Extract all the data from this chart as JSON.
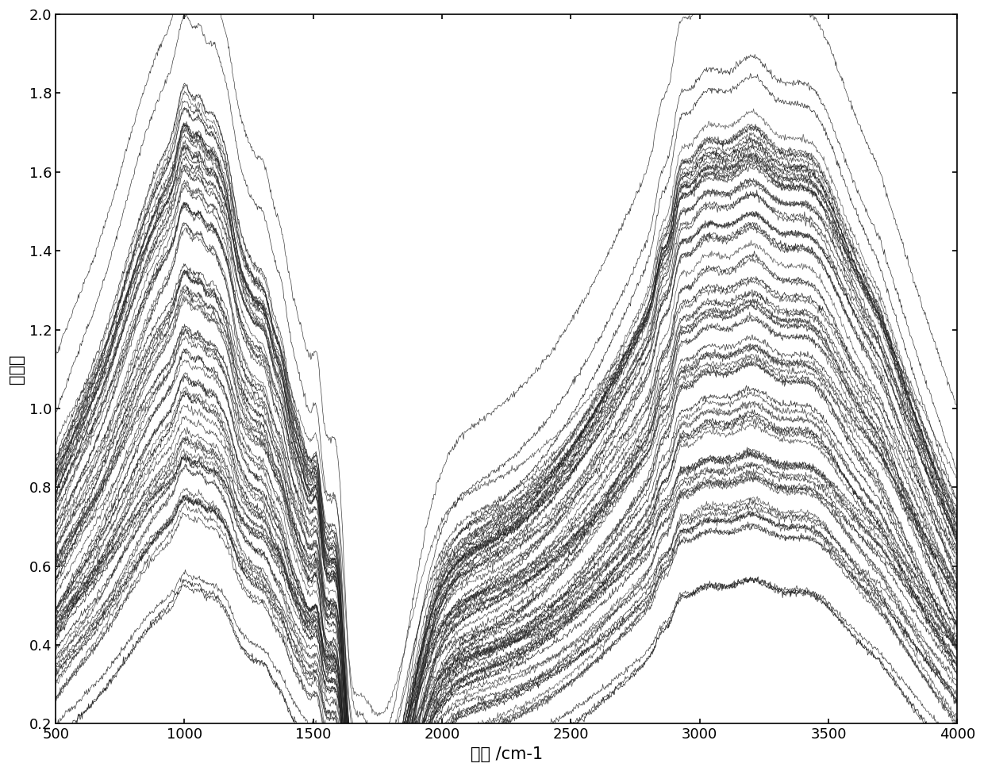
{
  "xlim": [
    500,
    4000
  ],
  "ylim": [
    0.2,
    2.0
  ],
  "xlabel": "波数 /cm-1",
  "ylabel": "吸光度",
  "xticks": [
    500,
    1000,
    1500,
    2000,
    2500,
    3000,
    3500,
    4000
  ],
  "yticks": [
    0.2,
    0.4,
    0.6,
    0.8,
    1.0,
    1.2,
    1.4,
    1.6,
    1.8,
    2.0
  ],
  "n_spectra": 80,
  "background_color": "#ffffff",
  "line_width": 0.5,
  "seed": 123,
  "xlabel_fontsize": 15,
  "ylabel_fontsize": 15,
  "tick_fontsize": 13,
  "fig_width": 12.4,
  "fig_height": 9.72,
  "dpi": 100
}
